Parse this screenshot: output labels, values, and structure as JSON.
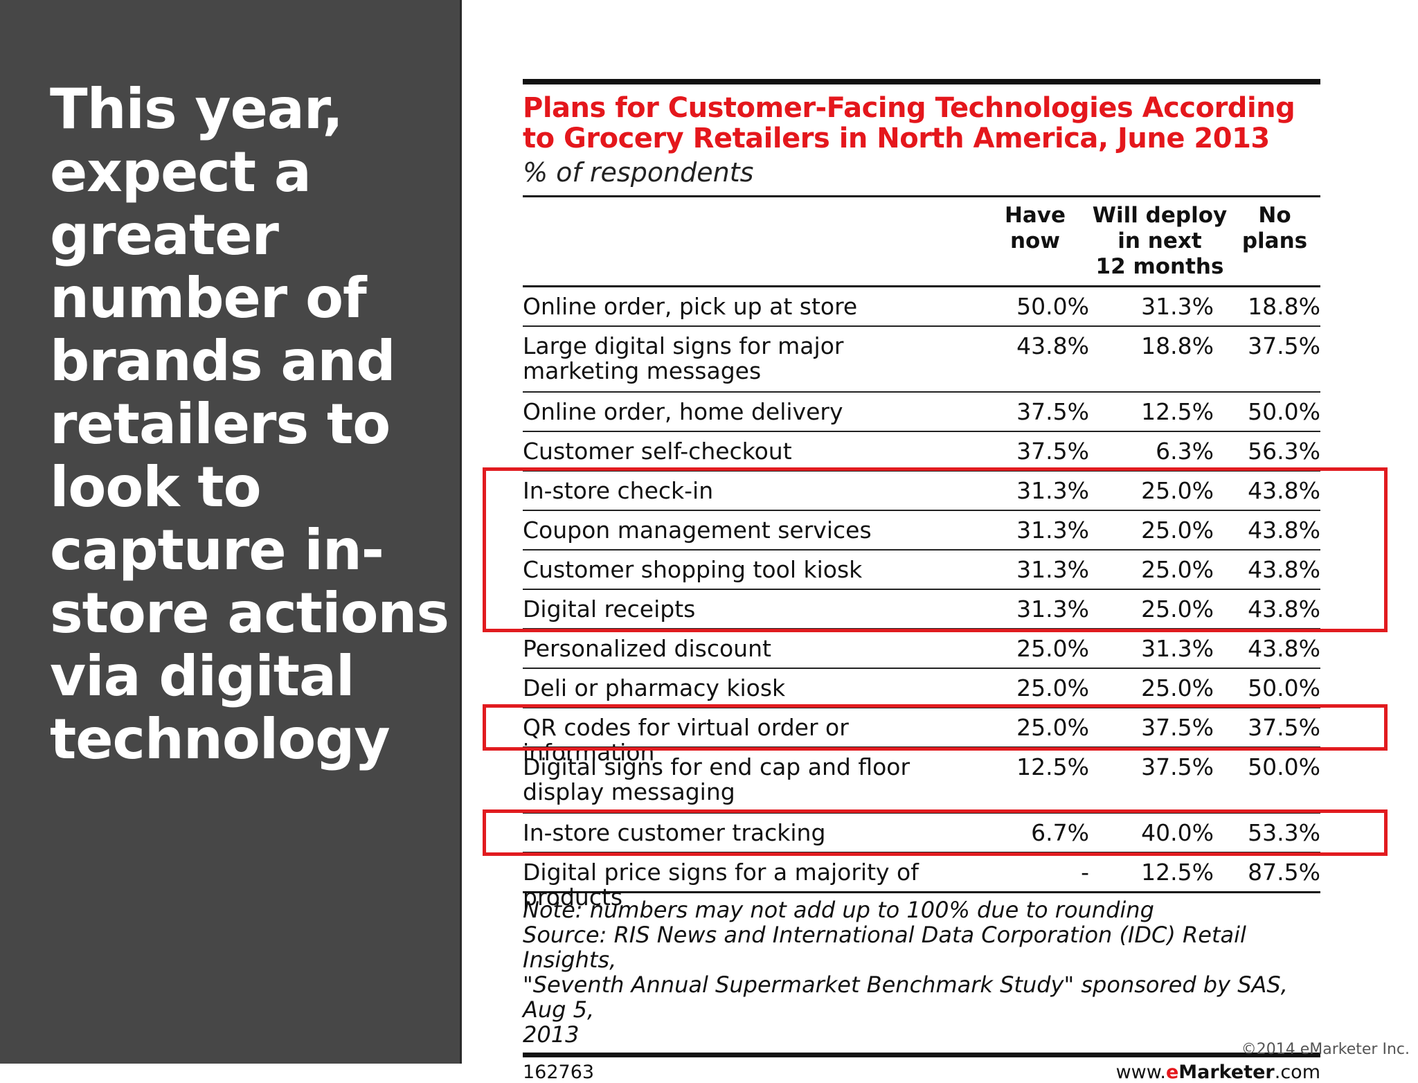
{
  "headline": "This year, expect a greater number of brands and retailers to look to capture in-store actions via digital technology",
  "chart_data": {
    "type": "table",
    "title": "Plans for Customer-Facing Technologies According to Grocery Retailers in North America, June 2013",
    "subtitle": "% of respondents",
    "columns": [
      "Have now",
      "Will deploy in next 12 months",
      "No plans"
    ],
    "column_headers_display": [
      "Have\nnow",
      "Will deploy\nin next\n12 months",
      "No\nplans"
    ],
    "rows": [
      {
        "label": "Online order, pick up at store",
        "label_lines": [
          "Online order, pick up at store"
        ],
        "values": [
          "50.0%",
          "31.3%",
          "18.8%"
        ]
      },
      {
        "label": "Large digital signs for major marketing messages",
        "label_lines": [
          "Large digital signs for major",
          "marketing messages"
        ],
        "values": [
          "43.8%",
          "18.8%",
          "37.5%"
        ]
      },
      {
        "label": "Online order, home delivery",
        "label_lines": [
          "Online order, home delivery"
        ],
        "values": [
          "37.5%",
          "12.5%",
          "50.0%"
        ]
      },
      {
        "label": "Customer self-checkout",
        "label_lines": [
          "Customer self-checkout"
        ],
        "values": [
          "37.5%",
          "6.3%",
          "56.3%"
        ]
      },
      {
        "label": "In-store check-in",
        "label_lines": [
          "In-store check-in"
        ],
        "values": [
          "31.3%",
          "25.0%",
          "43.8%"
        ]
      },
      {
        "label": "Coupon management services",
        "label_lines": [
          "Coupon management services"
        ],
        "values": [
          "31.3%",
          "25.0%",
          "43.8%"
        ]
      },
      {
        "label": "Customer shopping tool kiosk",
        "label_lines": [
          "Customer shopping tool kiosk"
        ],
        "values": [
          "31.3%",
          "25.0%",
          "43.8%"
        ]
      },
      {
        "label": "Digital receipts",
        "label_lines": [
          "Digital receipts"
        ],
        "values": [
          "31.3%",
          "25.0%",
          "43.8%"
        ]
      },
      {
        "label": "Personalized discount",
        "label_lines": [
          "Personalized discount"
        ],
        "values": [
          "25.0%",
          "31.3%",
          "43.8%"
        ]
      },
      {
        "label": "Deli or pharmacy kiosk",
        "label_lines": [
          "Deli or pharmacy kiosk"
        ],
        "values": [
          "25.0%",
          "25.0%",
          "50.0%"
        ]
      },
      {
        "label": "QR codes for virtual order or information",
        "label_lines": [
          "QR codes for virtual order or information"
        ],
        "values": [
          "25.0%",
          "37.5%",
          "37.5%"
        ]
      },
      {
        "label": "Digital signs for end cap and floor display messaging",
        "label_lines": [
          "Digital signs for end cap and floor",
          "display messaging"
        ],
        "values": [
          "12.5%",
          "37.5%",
          "50.0%"
        ]
      },
      {
        "label": "In-store customer tracking",
        "label_lines": [
          "In-store customer tracking"
        ],
        "values": [
          "6.7%",
          "40.0%",
          "53.3%"
        ]
      },
      {
        "label": "Digital price signs for a majority of products",
        "label_lines": [
          "Digital price signs for a majority of products"
        ],
        "values": [
          "-",
          "12.5%",
          "87.5%"
        ]
      }
    ],
    "highlighted_rows": [
      [
        "In-store check-in",
        "Coupon management services",
        "Customer shopping tool kiosk",
        "Digital receipts"
      ],
      [
        "QR codes for virtual order or information"
      ],
      [
        "In-store customer tracking"
      ]
    ],
    "highlight_color": "#e11b1f",
    "notes": [
      "Note: numbers may not add up to 100% due to rounding",
      "Source: RIS News and International Data Corporation (IDC) Retail Insights,",
      "\"Seventh Annual Supermarket Benchmark Study\" sponsored by SAS, Aug 5,",
      "2013"
    ]
  },
  "footer": {
    "chart_id": "162763",
    "site_prefix": "www.",
    "site_e": "e",
    "site_brand": "Marketer",
    "site_suffix": ".com"
  },
  "copyright": "©2014 eMarketer Inc.",
  "colors": {
    "panel_bg": "#474747",
    "title_red": "#e4171c",
    "text": "#111111"
  }
}
